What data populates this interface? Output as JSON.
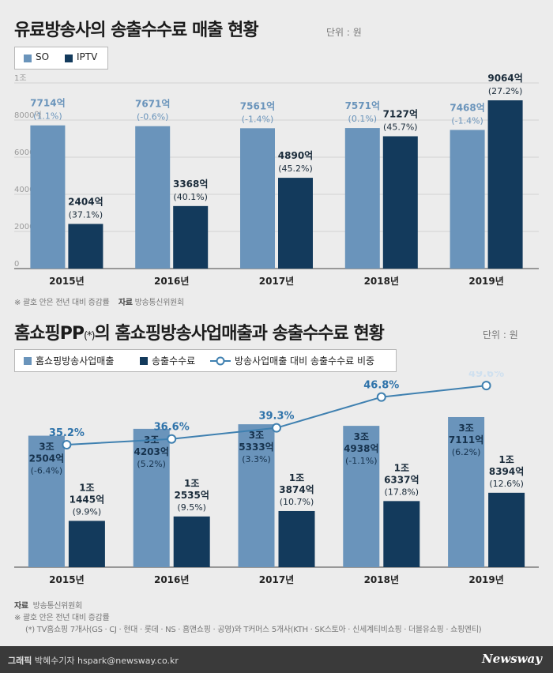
{
  "chart1": {
    "title": "유료방송사의 송출수수료 매출 현황",
    "unit": "단위 : 원",
    "legend": [
      "SO",
      "IPTV"
    ],
    "notes": {
      "paren": "※ 괄호 안은 전년 대비 증감률",
      "source_label": "자료",
      "source": "방송통신위원회"
    }
  },
  "chart2": {
    "title_main": "홈쇼핑PP",
    "title_mark": "(*)",
    "title_rest": "의 홈쇼핑방송사업매출과 송출수수료 현황",
    "unit": "단위 : 원",
    "legend": [
      "홈쇼핑방송사업매출",
      "송출수수료",
      "방송사업매출 대비 송출수수료 비중"
    ],
    "notes": {
      "source_label": "자료",
      "source": "방송통신위원회",
      "paren": "※ 괄호 안은 전년 대비 증감률",
      "star": "(*) TV홈쇼핑 7개사(GS · CJ · 현대 · 롯데 · NS · 홈앤쇼핑 · 공영)와 T커머스 5개사(KTH · SK스토아 · 신세계티비쇼핑 · 더블유쇼핑 · 쇼핑엔티)"
    }
  },
  "footer": {
    "credit_label": "그래픽",
    "credit": "박혜수기자 hspark@newsway.co.kr",
    "brand": "Newsway"
  },
  "colors": {
    "light": "#6a94bb",
    "dark": "#133a5c",
    "line": "#3f80b0",
    "bg": "#ececec"
  },
  "chart_data": [
    {
      "type": "bar",
      "title": "유료방송사의 송출수수료 매출 현황",
      "categories": [
        "2015년",
        "2016년",
        "2017년",
        "2018년",
        "2019년"
      ],
      "y_ticks": [
        "0",
        "2000억",
        "4000억",
        "6000억",
        "8000억",
        "1조"
      ],
      "ylim": [
        0,
        10000
      ],
      "series": [
        {
          "name": "SO",
          "values": [
            7714,
            7671,
            7561,
            7571,
            7468
          ],
          "labels": [
            "7714억",
            "7671억",
            "7561억",
            "7571억",
            "7468억"
          ],
          "changes": [
            "(1.1%)",
            "(-0.6%)",
            "(-1.4%)",
            "(0.1%)",
            "(-1.4%)"
          ]
        },
        {
          "name": "IPTV",
          "values": [
            2404,
            3368,
            4890,
            7127,
            9064
          ],
          "labels": [
            "2404억",
            "3368억",
            "4890억",
            "7127억",
            "9064억"
          ],
          "changes": [
            "(37.1%)",
            "(40.1%)",
            "(45.2%)",
            "(45.7%)",
            "(27.2%)"
          ]
        }
      ]
    },
    {
      "type": "bar",
      "title": "홈쇼핑PP(*)의 홈쇼핑방송사업매출과 송출수수료 현황",
      "categories": [
        "2015년",
        "2016년",
        "2017년",
        "2018년",
        "2019년"
      ],
      "series": [
        {
          "name": "홈쇼핑방송사업매출",
          "values": [
            32504,
            34203,
            35333,
            34938,
            37111
          ],
          "labels": [
            [
              "3조",
              "2504억"
            ],
            [
              "3조",
              "4203억"
            ],
            [
              "3조",
              "5333억"
            ],
            [
              "3조",
              "4938억"
            ],
            [
              "3조",
              "7111억"
            ]
          ],
          "changes": [
            "(-6.4%)",
            "(5.2%)",
            "(3.3%)",
            "(-1.1%)",
            "(6.2%)"
          ]
        },
        {
          "name": "송출수수료",
          "values": [
            11445,
            12535,
            13874,
            16337,
            18394
          ],
          "labels": [
            [
              "1조",
              "1445억"
            ],
            [
              "1조",
              "2535억"
            ],
            [
              "1조",
              "3874억"
            ],
            [
              "1조",
              "6337억"
            ],
            [
              "1조",
              "8394억"
            ]
          ],
          "changes": [
            "(9.9%)",
            "(9.5%)",
            "(10.7%)",
            "(17.8%)",
            "(12.6%)"
          ]
        }
      ],
      "line": {
        "name": "방송사업매출 대비 송출수수료 비중",
        "values": [
          35.2,
          36.6,
          39.3,
          46.8,
          49.6
        ],
        "labels": [
          "35.2%",
          "36.6%",
          "39.3%",
          "46.8%",
          "49.6%"
        ]
      }
    }
  ]
}
